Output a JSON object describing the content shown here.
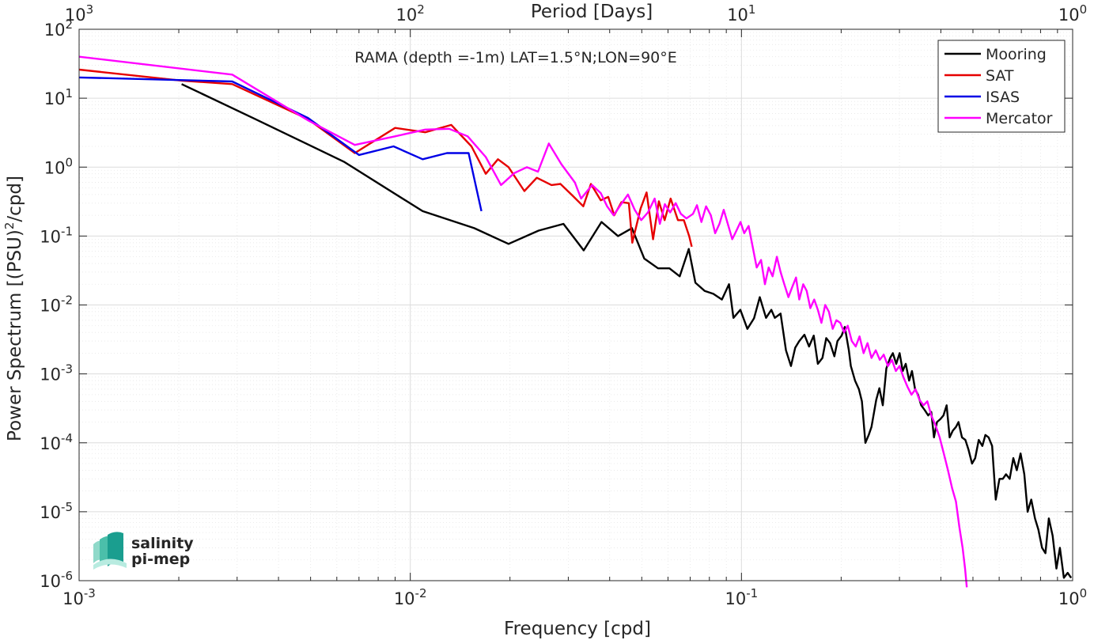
{
  "chart_data": {
    "type": "line",
    "title": "",
    "annotation": "RAMA (depth =-1m) LAT=1.5°N;LON=90°E",
    "xlabel": "Frequency [cpd]",
    "ylabel": "Power Spectrum [(PSU)^2/cpd]",
    "x2label": "Period [Days]",
    "xscale": "log",
    "yscale": "log",
    "xlim": [
      0.001,
      1
    ],
    "ylim": [
      1e-06,
      100
    ],
    "grid": true,
    "legend_position": "top-right",
    "x_ticks": [
      {
        "value": 0.001,
        "base": "10",
        "exp": "-3"
      },
      {
        "value": 0.01,
        "base": "10",
        "exp": "-2"
      },
      {
        "value": 0.1,
        "base": "10",
        "exp": "-1"
      },
      {
        "value": 1,
        "base": "10",
        "exp": "0"
      }
    ],
    "y_ticks": [
      {
        "value": 1e-06,
        "base": "10",
        "exp": "-6"
      },
      {
        "value": 1e-05,
        "base": "10",
        "exp": "-5"
      },
      {
        "value": 0.0001,
        "base": "10",
        "exp": "-4"
      },
      {
        "value": 0.001,
        "base": "10",
        "exp": "-3"
      },
      {
        "value": 0.01,
        "base": "10",
        "exp": "-2"
      },
      {
        "value": 0.1,
        "base": "10",
        "exp": "-1"
      },
      {
        "value": 1,
        "base": "10",
        "exp": "0"
      },
      {
        "value": 10,
        "base": "10",
        "exp": "1"
      },
      {
        "value": 100,
        "base": "10",
        "exp": "2"
      }
    ],
    "period_ticks": [
      {
        "frequency": 0.001,
        "base": "10",
        "exp": "3"
      },
      {
        "frequency": 0.01,
        "base": "10",
        "exp": "2"
      },
      {
        "frequency": 0.1,
        "base": "10",
        "exp": "1"
      },
      {
        "frequency": 1,
        "base": "10",
        "exp": "0"
      }
    ],
    "series": [
      {
        "name": "Mooring",
        "color": "#000000",
        "points": [
          [
            0.00204,
            16
          ],
          [
            0.0034,
            5
          ],
          [
            0.0063,
            1.2
          ],
          [
            0.0109,
            0.23
          ],
          [
            0.0156,
            0.13
          ],
          [
            0.0198,
            0.077
          ],
          [
            0.0244,
            0.12
          ],
          [
            0.029,
            0.15
          ],
          [
            0.0334,
            0.062
          ],
          [
            0.0378,
            0.16
          ],
          [
            0.0424,
            0.1
          ],
          [
            0.0467,
            0.13
          ],
          [
            0.0509,
            0.047
          ],
          [
            0.056,
            0.034
          ],
          [
            0.0606,
            0.034
          ],
          [
            0.0651,
            0.026
          ],
          [
            0.0693,
            0.065
          ],
          [
            0.0726,
            0.021
          ],
          [
            0.0774,
            0.016
          ],
          [
            0.0822,
            0.0145
          ],
          [
            0.0873,
            0.012
          ],
          [
            0.0917,
            0.02
          ],
          [
            0.0946,
            0.0065
          ],
          [
            0.0992,
            0.0085
          ],
          [
            0.1042,
            0.0045
          ],
          [
            0.1091,
            0.0064
          ],
          [
            0.1136,
            0.013
          ],
          [
            0.1186,
            0.0065
          ],
          [
            0.1231,
            0.0085
          ],
          [
            0.1261,
            0.0065
          ],
          [
            0.1313,
            0.0075
          ],
          [
            0.1363,
            0.0022
          ],
          [
            0.1411,
            0.0013
          ],
          [
            0.1453,
            0.0024
          ],
          [
            0.1495,
            0.003
          ],
          [
            0.1549,
            0.0037
          ],
          [
            0.16,
            0.0025
          ],
          [
            0.1653,
            0.0036
          ],
          [
            0.1701,
            0.0014
          ],
          [
            0.1756,
            0.0017
          ],
          [
            0.1803,
            0.0033
          ],
          [
            0.1852,
            0.0028
          ],
          [
            0.1908,
            0.0018
          ],
          [
            0.1949,
            0.003
          ],
          [
            0.2007,
            0.0036
          ],
          [
            0.2052,
            0.0048
          ],
          [
            0.211,
            0.0022
          ],
          [
            0.2139,
            0.0013
          ],
          [
            0.2202,
            0.0008
          ],
          [
            0.2263,
            0.0006
          ],
          [
            0.2311,
            0.0004
          ],
          [
            0.2367,
            0.0001
          ],
          [
            0.2422,
            0.00013
          ],
          [
            0.247,
            0.00017
          ],
          [
            0.2552,
            0.00042
          ],
          [
            0.2609,
            0.00062
          ],
          [
            0.2671,
            0.00035
          ],
          [
            0.2739,
            0.0012
          ],
          [
            0.2812,
            0.0017
          ],
          [
            0.2865,
            0.002
          ],
          [
            0.2933,
            0.0014
          ],
          [
            0.3003,
            0.002
          ],
          [
            0.3068,
            0.0011
          ],
          [
            0.3133,
            0.0014
          ],
          [
            0.3208,
            0.0008
          ],
          [
            0.3272,
            0.0011
          ],
          [
            0.3343,
            0.0006
          ],
          [
            0.3414,
            0.0005
          ],
          [
            0.3489,
            0.00035
          ],
          [
            0.3573,
            0.0003
          ],
          [
            0.3664,
            0.00025
          ],
          [
            0.3742,
            0.00028
          ],
          [
            0.3813,
            0.00012
          ],
          [
            0.3894,
            0.0002
          ],
          [
            0.3985,
            0.00022
          ],
          [
            0.4073,
            0.00025
          ],
          [
            0.4164,
            0.00035
          ],
          [
            0.4253,
            0.00012
          ],
          [
            0.4347,
            0.00015
          ],
          [
            0.4444,
            0.00017
          ],
          [
            0.4522,
            0.0002
          ],
          [
            0.4634,
            0.00012
          ],
          [
            0.4743,
            0.00011
          ],
          [
            0.4846,
            8e-05
          ],
          [
            0.4969,
            5e-05
          ],
          [
            0.5079,
            6e-05
          ],
          [
            0.5206,
            0.00011
          ],
          [
            0.534,
            9e-05
          ],
          [
            0.5451,
            0.00013
          ],
          [
            0.5575,
            0.00012
          ],
          [
            0.5712,
            9e-05
          ],
          [
            0.586,
            1.5e-05
          ],
          [
            0.6014,
            3e-05
          ],
          [
            0.6152,
            3e-05
          ],
          [
            0.6294,
            3.5e-05
          ],
          [
            0.6456,
            3e-05
          ],
          [
            0.6621,
            6e-05
          ],
          [
            0.6781,
            4e-05
          ],
          [
            0.6962,
            7e-05
          ],
          [
            0.7145,
            3.5e-05
          ],
          [
            0.7312,
            1e-05
          ],
          [
            0.7502,
            1.5e-05
          ],
          [
            0.7697,
            8e-06
          ],
          [
            0.7879,
            5.5e-06
          ],
          [
            0.8082,
            3e-06
          ],
          [
            0.8274,
            2.5e-06
          ],
          [
            0.8475,
            8e-06
          ],
          [
            0.8701,
            4.5e-06
          ],
          [
            0.8933,
            1.5e-06
          ],
          [
            0.9151,
            3e-06
          ],
          [
            0.9406,
            1.1e-06
          ],
          [
            0.9661,
            1.3e-06
          ],
          [
            0.9898,
            1.1e-06
          ]
        ]
      },
      {
        "name": "SAT",
        "color": "#e60000",
        "points": [
          [
            0.001,
            26
          ],
          [
            0.00204,
            18
          ],
          [
            0.0029,
            16
          ],
          [
            0.0049,
            5
          ],
          [
            0.0068,
            1.6
          ],
          [
            0.009,
            3.7
          ],
          [
            0.0111,
            3.2
          ],
          [
            0.0133,
            4.1
          ],
          [
            0.0153,
            2
          ],
          [
            0.0169,
            0.8
          ],
          [
            0.0184,
            1.3
          ],
          [
            0.0198,
            1
          ],
          [
            0.0221,
            0.45
          ],
          [
            0.0241,
            0.7
          ],
          [
            0.0267,
            0.55
          ],
          [
            0.0284,
            0.57
          ],
          [
            0.031,
            0.38
          ],
          [
            0.0333,
            0.27
          ],
          [
            0.0351,
            0.57
          ],
          [
            0.0376,
            0.33
          ],
          [
            0.0396,
            0.37
          ],
          [
            0.0413,
            0.2
          ],
          [
            0.0434,
            0.31
          ],
          [
            0.0457,
            0.3
          ],
          [
            0.0468,
            0.08
          ],
          [
            0.0496,
            0.25
          ],
          [
            0.0517,
            0.43
          ],
          [
            0.0541,
            0.09
          ],
          [
            0.0563,
            0.32
          ],
          [
            0.0586,
            0.17
          ],
          [
            0.0611,
            0.35
          ],
          [
            0.0643,
            0.17
          ],
          [
            0.067,
            0.17
          ],
          [
            0.0695,
            0.1
          ],
          [
            0.0708,
            0.07
          ]
        ]
      },
      {
        "name": "ISAS",
        "color": "#0000e6",
        "points": [
          [
            0.001,
            20
          ],
          [
            0.0029,
            17.5
          ],
          [
            0.0049,
            5.2
          ],
          [
            0.007,
            1.5
          ],
          [
            0.0089,
            2
          ],
          [
            0.0109,
            1.3
          ],
          [
            0.0129,
            1.6
          ],
          [
            0.015,
            1.6
          ],
          [
            0.0164,
            0.23
          ]
        ]
      },
      {
        "name": "Mercator",
        "color": "#ff00ff",
        "points": [
          [
            0.001,
            40
          ],
          [
            0.0029,
            22
          ],
          [
            0.0049,
            4.8
          ],
          [
            0.0068,
            2.1
          ],
          [
            0.009,
            2.8
          ],
          [
            0.0111,
            3.5
          ],
          [
            0.0131,
            3.6
          ],
          [
            0.0149,
            2.8
          ],
          [
            0.0169,
            1.4
          ],
          [
            0.0188,
            0.55
          ],
          [
            0.0206,
            0.82
          ],
          [
            0.0225,
            1
          ],
          [
            0.0243,
            0.86
          ],
          [
            0.0262,
            2.2
          ],
          [
            0.0286,
            1.1
          ],
          [
            0.0314,
            0.6
          ],
          [
            0.0328,
            0.35
          ],
          [
            0.0354,
            0.55
          ],
          [
            0.0376,
            0.42
          ],
          [
            0.0393,
            0.27
          ],
          [
            0.0411,
            0.2
          ],
          [
            0.0431,
            0.28
          ],
          [
            0.0454,
            0.4
          ],
          [
            0.0476,
            0.24
          ],
          [
            0.0498,
            0.17
          ],
          [
            0.0522,
            0.22
          ],
          [
            0.0547,
            0.35
          ],
          [
            0.0567,
            0.15
          ],
          [
            0.0587,
            0.29
          ],
          [
            0.0609,
            0.22
          ],
          [
            0.0633,
            0.3
          ],
          [
            0.0656,
            0.21
          ],
          [
            0.0682,
            0.18
          ],
          [
            0.0714,
            0.21
          ],
          [
            0.0734,
            0.28
          ],
          [
            0.0757,
            0.16
          ],
          [
            0.0782,
            0.27
          ],
          [
            0.0808,
            0.2
          ],
          [
            0.0833,
            0.11
          ],
          [
            0.0858,
            0.15
          ],
          [
            0.0884,
            0.24
          ],
          [
            0.0913,
            0.14
          ],
          [
            0.0938,
            0.09
          ],
          [
            0.0966,
            0.12
          ],
          [
            0.0993,
            0.16
          ],
          [
            0.1019,
            0.11
          ],
          [
            0.1051,
            0.14
          ],
          [
            0.1081,
            0.07
          ],
          [
            0.1112,
            0.035
          ],
          [
            0.1146,
            0.045
          ],
          [
            0.1177,
            0.02
          ],
          [
            0.1208,
            0.035
          ],
          [
            0.1242,
            0.026
          ],
          [
            0.1279,
            0.05
          ],
          [
            0.1313,
            0.03
          ],
          [
            0.1347,
            0.02
          ],
          [
            0.1386,
            0.013
          ],
          [
            0.1422,
            0.018
          ],
          [
            0.1461,
            0.025
          ],
          [
            0.1495,
            0.012
          ],
          [
            0.1536,
            0.02
          ],
          [
            0.1574,
            0.016
          ],
          [
            0.1614,
            0.009
          ],
          [
            0.1658,
            0.012
          ],
          [
            0.1701,
            0.0085
          ],
          [
            0.1743,
            0.0055
          ],
          [
            0.179,
            0.01
          ],
          [
            0.1836,
            0.008
          ],
          [
            0.1886,
            0.0045
          ],
          [
            0.1934,
            0.006
          ],
          [
            0.1988,
            0.0055
          ],
          [
            0.2041,
            0.004
          ],
          [
            0.2094,
            0.005
          ],
          [
            0.2153,
            0.003
          ],
          [
            0.2213,
            0.0025
          ],
          [
            0.2273,
            0.0035
          ],
          [
            0.2337,
            0.002
          ],
          [
            0.2402,
            0.0028
          ],
          [
            0.247,
            0.0017
          ],
          [
            0.2544,
            0.0022
          ],
          [
            0.2616,
            0.0016
          ],
          [
            0.2689,
            0.0019
          ],
          [
            0.2769,
            0.0013
          ],
          [
            0.2846,
            0.0016
          ],
          [
            0.2925,
            0.0011
          ],
          [
            0.3002,
            0.0013
          ],
          [
            0.3082,
            0.0009
          ],
          [
            0.3172,
            0.00065
          ],
          [
            0.3261,
            0.0005
          ],
          [
            0.3354,
            0.0006
          ],
          [
            0.3447,
            0.00042
          ],
          [
            0.3547,
            0.00035
          ],
          [
            0.3642,
            0.0004
          ],
          [
            0.3743,
            0.00025
          ],
          [
            0.3854,
            0.00018
          ],
          [
            0.3968,
            0.00012
          ],
          [
            0.4082,
            7e-05
          ],
          [
            0.4202,
            4e-05
          ],
          [
            0.4324,
            2.2e-05
          ],
          [
            0.4442,
            1.4e-05
          ],
          [
            0.4549,
            6e-06
          ],
          [
            0.4654,
            3e-06
          ],
          [
            0.4733,
            1.5e-06
          ],
          [
            0.4791,
            8e-07
          ]
        ]
      }
    ]
  },
  "logo": {
    "line1": "salinity",
    "line2": "pi-mep",
    "color": "#1a9e8f"
  }
}
